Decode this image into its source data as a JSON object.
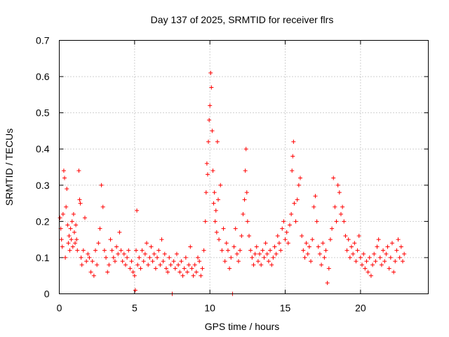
{
  "chart_data": {
    "type": "scatter",
    "title": "Day 137 of 2025, SRMTID for receiver flrs",
    "xlabel": "GPS time / hours",
    "ylabel": "SRMTID / TECUs",
    "xlim": [
      0,
      24.5
    ],
    "ylim": [
      0,
      0.7
    ],
    "xticks": [
      0,
      5,
      10,
      15,
      20
    ],
    "yticks": [
      0,
      0.1,
      0.2,
      0.3,
      0.4,
      0.5,
      0.6,
      0.7
    ],
    "grid": true,
    "marker": "plus",
    "color": "#ff0000",
    "series": [
      {
        "name": "SRMTID",
        "points": [
          [
            0.05,
            0.21
          ],
          [
            0.1,
            0.18
          ],
          [
            0.15,
            0.15
          ],
          [
            0.2,
            0.13
          ],
          [
            0.25,
            0.22
          ],
          [
            0.3,
            0.34
          ],
          [
            0.35,
            0.32
          ],
          [
            0.4,
            0.1
          ],
          [
            0.45,
            0.24
          ],
          [
            0.5,
            0.29
          ],
          [
            0.55,
            0.19
          ],
          [
            0.6,
            0.14
          ],
          [
            0.65,
            0.16
          ],
          [
            0.7,
            0.12
          ],
          [
            0.75,
            0.18
          ],
          [
            0.8,
            0.15
          ],
          [
            0.85,
            0.2
          ],
          [
            0.9,
            0.13
          ],
          [
            0.95,
            0.22
          ],
          [
            1.0,
            0.17
          ],
          [
            1.05,
            0.14
          ],
          [
            1.1,
            0.19
          ],
          [
            1.15,
            0.15
          ],
          [
            1.2,
            0.12
          ],
          [
            1.3,
            0.34
          ],
          [
            1.35,
            0.26
          ],
          [
            1.4,
            0.25
          ],
          [
            1.45,
            0.1
          ],
          [
            1.5,
            0.08
          ],
          [
            1.6,
            0.12
          ],
          [
            1.7,
            0.21
          ],
          [
            1.8,
            0.09
          ],
          [
            1.9,
            0.11
          ],
          [
            2.0,
            0.1
          ],
          [
            2.1,
            0.06
          ],
          [
            2.2,
            0.09
          ],
          [
            2.3,
            0.05
          ],
          [
            2.4,
            0.12
          ],
          [
            2.5,
            0.08
          ],
          [
            2.6,
            0.14
          ],
          [
            2.7,
            0.18
          ],
          [
            2.8,
            0.3
          ],
          [
            2.9,
            0.24
          ],
          [
            3.0,
            0.12
          ],
          [
            3.1,
            0.1
          ],
          [
            3.2,
            0.06
          ],
          [
            3.3,
            0.08
          ],
          [
            3.4,
            0.15
          ],
          [
            3.5,
            0.12
          ],
          [
            3.6,
            0.1
          ],
          [
            3.7,
            0.09
          ],
          [
            3.8,
            0.13
          ],
          [
            3.9,
            0.11
          ],
          [
            4.0,
            0.17
          ],
          [
            4.1,
            0.12
          ],
          [
            4.2,
            0.09
          ],
          [
            4.3,
            0.11
          ],
          [
            4.4,
            0.08
          ],
          [
            4.5,
            0.1
          ],
          [
            4.6,
            0.12
          ],
          [
            4.7,
            0.07
          ],
          [
            4.8,
            0.09
          ],
          [
            4.9,
            0.06
          ],
          [
            5.0,
            0.05
          ],
          [
            5.05,
            0.01
          ],
          [
            5.1,
            0.12
          ],
          [
            5.15,
            0.23
          ],
          [
            5.2,
            0.08
          ],
          [
            5.3,
            0.1
          ],
          [
            5.4,
            0.07
          ],
          [
            5.5,
            0.12
          ],
          [
            5.6,
            0.09
          ],
          [
            5.7,
            0.11
          ],
          [
            5.8,
            0.14
          ],
          [
            5.9,
            0.08
          ],
          [
            6.0,
            0.1
          ],
          [
            6.1,
            0.13
          ],
          [
            6.2,
            0.09
          ],
          [
            6.3,
            0.11
          ],
          [
            6.4,
            0.07
          ],
          [
            6.5,
            0.1
          ],
          [
            6.6,
            0.12
          ],
          [
            6.7,
            0.08
          ],
          [
            6.8,
            0.15
          ],
          [
            6.9,
            0.09
          ],
          [
            7.0,
            0.11
          ],
          [
            7.1,
            0.07
          ],
          [
            7.2,
            0.06
          ],
          [
            7.3,
            0.1
          ],
          [
            7.4,
            0.08
          ],
          [
            7.5,
            0.0
          ],
          [
            7.6,
            0.09
          ],
          [
            7.7,
            0.07
          ],
          [
            7.8,
            0.11
          ],
          [
            7.9,
            0.08
          ],
          [
            8.0,
            0.06
          ],
          [
            8.1,
            0.09
          ],
          [
            8.2,
            0.05
          ],
          [
            8.3,
            0.07
          ],
          [
            8.4,
            0.1
          ],
          [
            8.5,
            0.06
          ],
          [
            8.6,
            0.08
          ],
          [
            8.7,
            0.13
          ],
          [
            8.8,
            0.07
          ],
          [
            8.9,
            0.05
          ],
          [
            9.0,
            0.08
          ],
          [
            9.1,
            0.06
          ],
          [
            9.2,
            0.1
          ],
          [
            9.3,
            0.09
          ],
          [
            9.4,
            0.05
          ],
          [
            9.5,
            0.07
          ],
          [
            9.6,
            0.12
          ],
          [
            9.7,
            0.2
          ],
          [
            9.75,
            0.28
          ],
          [
            9.8,
            0.36
          ],
          [
            9.85,
            0.33
          ],
          [
            9.9,
            0.42
          ],
          [
            9.95,
            0.48
          ],
          [
            10.0,
            0.52
          ],
          [
            10.05,
            0.61
          ],
          [
            10.1,
            0.57
          ],
          [
            10.15,
            0.45
          ],
          [
            10.2,
            0.34
          ],
          [
            10.25,
            0.25
          ],
          [
            10.3,
            0.28
          ],
          [
            10.35,
            0.2
          ],
          [
            10.4,
            0.23
          ],
          [
            10.45,
            0.17
          ],
          [
            10.5,
            0.42
          ],
          [
            10.55,
            0.26
          ],
          [
            10.6,
            0.15
          ],
          [
            10.7,
            0.3
          ],
          [
            10.8,
            0.12
          ],
          [
            10.9,
            0.18
          ],
          [
            11.0,
            0.09
          ],
          [
            11.1,
            0.14
          ],
          [
            11.2,
            0.12
          ],
          [
            11.3,
            0.07
          ],
          [
            11.4,
            0.1
          ],
          [
            11.5,
            0.0
          ],
          [
            11.6,
            0.13
          ],
          [
            11.7,
            0.18
          ],
          [
            11.8,
            0.11
          ],
          [
            11.9,
            0.09
          ],
          [
            12.0,
            0.12
          ],
          [
            12.1,
            0.16
          ],
          [
            12.2,
            0.22
          ],
          [
            12.3,
            0.26
          ],
          [
            12.35,
            0.34
          ],
          [
            12.4,
            0.4
          ],
          [
            12.45,
            0.28
          ],
          [
            12.5,
            0.2
          ],
          [
            12.6,
            0.16
          ],
          [
            12.7,
            0.12
          ],
          [
            12.8,
            0.1
          ],
          [
            12.9,
            0.08
          ],
          [
            13.0,
            0.11
          ],
          [
            13.1,
            0.13
          ],
          [
            13.2,
            0.09
          ],
          [
            13.3,
            0.11
          ],
          [
            13.4,
            0.08
          ],
          [
            13.5,
            0.12
          ],
          [
            13.6,
            0.1
          ],
          [
            13.7,
            0.14
          ],
          [
            13.8,
            0.11
          ],
          [
            13.9,
            0.09
          ],
          [
            14.0,
            0.12
          ],
          [
            14.1,
            0.08
          ],
          [
            14.2,
            0.1
          ],
          [
            14.3,
            0.13
          ],
          [
            14.4,
            0.11
          ],
          [
            14.5,
            0.16
          ],
          [
            14.6,
            0.14
          ],
          [
            14.7,
            0.12
          ],
          [
            14.8,
            0.18
          ],
          [
            14.9,
            0.2
          ],
          [
            15.0,
            0.15
          ],
          [
            15.1,
            0.17
          ],
          [
            15.2,
            0.14
          ],
          [
            15.3,
            0.19
          ],
          [
            15.4,
            0.22
          ],
          [
            15.45,
            0.34
          ],
          [
            15.5,
            0.38
          ],
          [
            15.55,
            0.42
          ],
          [
            15.6,
            0.25
          ],
          [
            15.7,
            0.2
          ],
          [
            15.8,
            0.26
          ],
          [
            15.9,
            0.3
          ],
          [
            16.0,
            0.32
          ],
          [
            16.1,
            0.16
          ],
          [
            16.2,
            0.12
          ],
          [
            16.3,
            0.1
          ],
          [
            16.4,
            0.14
          ],
          [
            16.5,
            0.11
          ],
          [
            16.6,
            0.13
          ],
          [
            16.7,
            0.09
          ],
          [
            16.8,
            0.15
          ],
          [
            16.9,
            0.24
          ],
          [
            17.0,
            0.27
          ],
          [
            17.1,
            0.2
          ],
          [
            17.2,
            0.13
          ],
          [
            17.3,
            0.11
          ],
          [
            17.4,
            0.08
          ],
          [
            17.5,
            0.14
          ],
          [
            17.6,
            0.1
          ],
          [
            17.7,
            0.12
          ],
          [
            17.8,
            0.03
          ],
          [
            17.9,
            0.07
          ],
          [
            18.0,
            0.15
          ],
          [
            18.1,
            0.18
          ],
          [
            18.2,
            0.32
          ],
          [
            18.3,
            0.24
          ],
          [
            18.4,
            0.2
          ],
          [
            18.5,
            0.3
          ],
          [
            18.6,
            0.28
          ],
          [
            18.7,
            0.22
          ],
          [
            18.8,
            0.24
          ],
          [
            18.9,
            0.2
          ],
          [
            19.0,
            0.16
          ],
          [
            19.1,
            0.12
          ],
          [
            19.2,
            0.15
          ],
          [
            19.3,
            0.1
          ],
          [
            19.4,
            0.13
          ],
          [
            19.5,
            0.11
          ],
          [
            19.6,
            0.14
          ],
          [
            19.7,
            0.09
          ],
          [
            19.8,
            0.12
          ],
          [
            19.9,
            0.16
          ],
          [
            20.0,
            0.1
          ],
          [
            20.1,
            0.08
          ],
          [
            20.2,
            0.11
          ],
          [
            20.3,
            0.07
          ],
          [
            20.4,
            0.09
          ],
          [
            20.5,
            0.06
          ],
          [
            20.6,
            0.1
          ],
          [
            20.7,
            0.05
          ],
          [
            20.8,
            0.08
          ],
          [
            20.9,
            0.11
          ],
          [
            21.0,
            0.09
          ],
          [
            21.1,
            0.13
          ],
          [
            21.2,
            0.15
          ],
          [
            21.3,
            0.1
          ],
          [
            21.4,
            0.08
          ],
          [
            21.5,
            0.12
          ],
          [
            21.6,
            0.09
          ],
          [
            21.7,
            0.11
          ],
          [
            21.8,
            0.13
          ],
          [
            21.9,
            0.07
          ],
          [
            22.0,
            0.1
          ],
          [
            22.1,
            0.14
          ],
          [
            22.2,
            0.06
          ],
          [
            22.3,
            0.09
          ],
          [
            22.4,
            0.12
          ],
          [
            22.5,
            0.15
          ],
          [
            22.6,
            0.1
          ],
          [
            22.7,
            0.13
          ],
          [
            22.8,
            0.09
          ],
          [
            22.9,
            0.11
          ]
        ]
      }
    ]
  }
}
